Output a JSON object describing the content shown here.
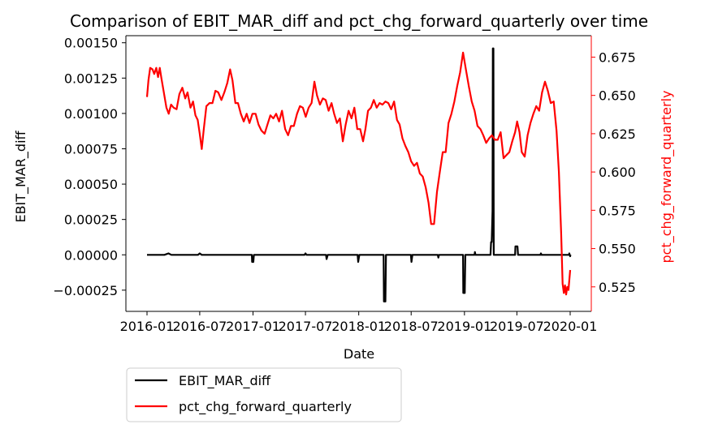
{
  "chart_data": {
    "type": "line",
    "title": "Comparison of EBIT_MAR_diff and pct_chg_forward_quarterly over time",
    "xlabel": "Date",
    "ylabel_left": "EBIT_MAR_diff",
    "ylabel_right": "pct_chg_forward_quarterly",
    "x_ticks": [
      "2016-01",
      "2016-07",
      "2017-01",
      "2017-07",
      "2018-01",
      "2018-07",
      "2019-01",
      "2019-07",
      "2020-01"
    ],
    "y_left_ticks": [
      "0.00150",
      "0.00125",
      "0.00100",
      "0.00075",
      "0.00050",
      "0.00025",
      "0.00000",
      "−0.00025"
    ],
    "y_right_ticks": [
      "0.675",
      "0.650",
      "0.625",
      "0.600",
      "0.575",
      "0.550",
      "0.525"
    ],
    "y_left_range": [
      -0.0004,
      0.00155
    ],
    "y_right_range": [
      0.509,
      0.689
    ],
    "grid": false,
    "legend_position": "below",
    "colors": {
      "left_series": "#000000",
      "right_series": "#ff0000"
    },
    "series": [
      {
        "name": "EBIT_MAR_diff",
        "axis": "left",
        "color": "#000000",
        "points": [
          [
            "2016-01",
            0.0
          ],
          [
            "2016-03",
            0.0
          ],
          [
            "2016-03-15",
            1e-05
          ],
          [
            "2016-03-25",
            0.0
          ],
          [
            "2016-06-25",
            0.0
          ],
          [
            "2016-07",
            1e-05
          ],
          [
            "2016-07-08",
            0.0
          ],
          [
            "2016-12-28",
            0.0
          ],
          [
            "2016-12-29",
            -5e-05
          ],
          [
            "2017-01-02",
            -5e-05
          ],
          [
            "2017-01-04",
            0.0
          ],
          [
            "2017-06-28",
            0.0
          ],
          [
            "2017-07",
            1e-05
          ],
          [
            "2017-07-05",
            0.0
          ],
          [
            "2017-09-10",
            0.0
          ],
          [
            "2017-09-12",
            -3e-05
          ],
          [
            "2017-09-16",
            0.0
          ],
          [
            "2017-12-28",
            0.0
          ],
          [
            "2017-12-30",
            -5e-05
          ],
          [
            "2018-01-03",
            0.0
          ],
          [
            "2018-03-28",
            0.0
          ],
          [
            "2018-03-29",
            -0.00033
          ],
          [
            "2018-04-03",
            -0.00033
          ],
          [
            "2018-04-05",
            0.0
          ],
          [
            "2018-06-30",
            0.0
          ],
          [
            "2018-07-02",
            -5e-05
          ],
          [
            "2018-07-05",
            0.0
          ],
          [
            "2018-10-01",
            0.0
          ],
          [
            "2018-10-03",
            -2e-05
          ],
          [
            "2018-10-05",
            0.0
          ],
          [
            "2018-12-27",
            0.0
          ],
          [
            "2018-12-28",
            -0.00027
          ],
          [
            "2019-01-02",
            -0.00027
          ],
          [
            "2019-01-04",
            0.0
          ],
          [
            "2019-02-05",
            0.0
          ],
          [
            "2019-02-06",
            2e-05
          ],
          [
            "2019-02-08",
            0.0
          ],
          [
            "2019-04-01",
            0.0
          ],
          [
            "2019-04-03",
            9e-05
          ],
          [
            "2019-04-05",
            9e-05
          ],
          [
            "2019-04-08",
            0.00031
          ],
          [
            "2019-04-09",
            0.00146
          ],
          [
            "2019-04-11",
            0.00146
          ],
          [
            "2019-04-12",
            0.0
          ],
          [
            "2019-06-25",
            0.0
          ],
          [
            "2019-06-26",
            6e-05
          ],
          [
            "2019-07-03",
            6e-05
          ],
          [
            "2019-07-05",
            0.0
          ],
          [
            "2019-09-20",
            0.0
          ],
          [
            "2019-09-22",
            1e-05
          ],
          [
            "2019-09-24",
            0.0
          ],
          [
            "2019-12-28",
            0.0
          ],
          [
            "2019-12-29",
            1e-05
          ],
          [
            "2020-01-01",
            -1e-05
          ],
          [
            "2020-01-02",
            0.0
          ]
        ]
      },
      {
        "name": "pct_chg_forward_quarterly",
        "axis": "right",
        "color": "#ff0000",
        "points": [
          [
            "2016-01",
            0.649
          ],
          [
            "2016-01-06",
            0.66
          ],
          [
            "2016-01-12",
            0.668
          ],
          [
            "2016-01-20",
            0.667
          ],
          [
            "2016-01-26",
            0.664
          ],
          [
            "2016-02-02",
            0.668
          ],
          [
            "2016-02-08",
            0.662
          ],
          [
            "2016-02-14",
            0.668
          ],
          [
            "2016-02-20",
            0.661
          ],
          [
            "2016-02-28",
            0.652
          ],
          [
            "2016-03-08",
            0.642
          ],
          [
            "2016-03-16",
            0.638
          ],
          [
            "2016-03-24",
            0.644
          ],
          [
            "2016-04-02",
            0.642
          ],
          [
            "2016-04-12",
            0.641
          ],
          [
            "2016-04-22",
            0.651
          ],
          [
            "2016-05-02",
            0.655
          ],
          [
            "2016-05-12",
            0.648
          ],
          [
            "2016-05-20",
            0.652
          ],
          [
            "2016-05-30",
            0.642
          ],
          [
            "2016-06-08",
            0.646
          ],
          [
            "2016-06-16",
            0.637
          ],
          [
            "2016-06-24",
            0.634
          ],
          [
            "2016-07-01",
            0.625
          ],
          [
            "2016-07-08",
            0.615
          ],
          [
            "2016-07-15",
            0.628
          ],
          [
            "2016-07-24",
            0.643
          ],
          [
            "2016-08-04",
            0.645
          ],
          [
            "2016-08-14",
            0.645
          ],
          [
            "2016-08-24",
            0.653
          ],
          [
            "2016-09-03",
            0.652
          ],
          [
            "2016-09-14",
            0.647
          ],
          [
            "2016-09-24",
            0.652
          ],
          [
            "2016-10-04",
            0.658
          ],
          [
            "2016-10-14",
            0.667
          ],
          [
            "2016-10-22",
            0.66
          ],
          [
            "2016-11-01",
            0.645
          ],
          [
            "2016-11-10",
            0.645
          ],
          [
            "2016-11-20",
            0.638
          ],
          [
            "2016-11-30",
            0.633
          ],
          [
            "2016-12-10",
            0.638
          ],
          [
            "2016-12-20",
            0.632
          ],
          [
            "2016-12-30",
            0.638
          ],
          [
            "2017-01-10",
            0.638
          ],
          [
            "2017-01-20",
            0.631
          ],
          [
            "2017-01-30",
            0.627
          ],
          [
            "2017-02-10",
            0.625
          ],
          [
            "2017-02-20",
            0.631
          ],
          [
            "2017-03-02",
            0.637
          ],
          [
            "2017-03-12",
            0.635
          ],
          [
            "2017-03-22",
            0.638
          ],
          [
            "2017-04-01",
            0.633
          ],
          [
            "2017-04-11",
            0.64
          ],
          [
            "2017-04-22",
            0.628
          ],
          [
            "2017-05-02",
            0.624
          ],
          [
            "2017-05-12",
            0.63
          ],
          [
            "2017-05-22",
            0.63
          ],
          [
            "2017-06-02",
            0.638
          ],
          [
            "2017-06-12",
            0.643
          ],
          [
            "2017-06-22",
            0.642
          ],
          [
            "2017-07-02",
            0.636
          ],
          [
            "2017-07-12",
            0.642
          ],
          [
            "2017-07-22",
            0.645
          ],
          [
            "2017-08-01",
            0.659
          ],
          [
            "2017-08-10",
            0.65
          ],
          [
            "2017-08-20",
            0.644
          ],
          [
            "2017-08-30",
            0.648
          ],
          [
            "2017-09-09",
            0.647
          ],
          [
            "2017-09-19",
            0.64
          ],
          [
            "2017-09-29",
            0.645
          ],
          [
            "2017-10-08",
            0.638
          ],
          [
            "2017-10-18",
            0.632
          ],
          [
            "2017-10-28",
            0.635
          ],
          [
            "2017-11-07",
            0.62
          ],
          [
            "2017-11-17",
            0.631
          ],
          [
            "2017-11-27",
            0.64
          ],
          [
            "2017-12-07",
            0.635
          ],
          [
            "2017-12-17",
            0.642
          ],
          [
            "2017-12-27",
            0.628
          ],
          [
            "2018-01-06",
            0.628
          ],
          [
            "2018-01-16",
            0.62
          ],
          [
            "2018-01-24",
            0.628
          ],
          [
            "2018-02-02",
            0.64
          ],
          [
            "2018-02-12",
            0.642
          ],
          [
            "2018-02-22",
            0.647
          ],
          [
            "2018-03-04",
            0.642
          ],
          [
            "2018-03-14",
            0.645
          ],
          [
            "2018-03-24",
            0.644
          ],
          [
            "2018-04-03",
            0.646
          ],
          [
            "2018-04-13",
            0.645
          ],
          [
            "2018-04-23",
            0.641
          ],
          [
            "2018-05-03",
            0.646
          ],
          [
            "2018-05-13",
            0.634
          ],
          [
            "2018-05-22",
            0.631
          ],
          [
            "2018-06-01",
            0.622
          ],
          [
            "2018-06-11",
            0.617
          ],
          [
            "2018-06-21",
            0.613
          ],
          [
            "2018-07-01",
            0.607
          ],
          [
            "2018-07-11",
            0.604
          ],
          [
            "2018-07-21",
            0.606
          ],
          [
            "2018-07-31",
            0.599
          ],
          [
            "2018-08-10",
            0.597
          ],
          [
            "2018-08-20",
            0.59
          ],
          [
            "2018-08-30",
            0.58
          ],
          [
            "2018-09-08",
            0.566
          ],
          [
            "2018-09-18",
            0.566
          ],
          [
            "2018-09-28",
            0.587
          ],
          [
            "2018-10-08",
            0.6
          ],
          [
            "2018-10-18",
            0.613
          ],
          [
            "2018-10-28",
            0.613
          ],
          [
            "2018-11-07",
            0.632
          ],
          [
            "2018-11-17",
            0.638
          ],
          [
            "2018-11-27",
            0.646
          ],
          [
            "2018-12-07",
            0.656
          ],
          [
            "2018-12-17",
            0.665
          ],
          [
            "2018-12-27",
            0.678
          ],
          [
            "2019-01-06",
            0.667
          ],
          [
            "2019-01-16",
            0.656
          ],
          [
            "2019-01-26",
            0.646
          ],
          [
            "2019-02-05",
            0.64
          ],
          [
            "2019-02-15",
            0.63
          ],
          [
            "2019-02-25",
            0.628
          ],
          [
            "2019-03-07",
            0.624
          ],
          [
            "2019-03-17",
            0.619
          ],
          [
            "2019-03-27",
            0.622
          ],
          [
            "2019-04-06",
            0.624
          ],
          [
            "2019-04-16",
            0.621
          ],
          [
            "2019-04-26",
            0.621
          ],
          [
            "2019-05-06",
            0.626
          ],
          [
            "2019-05-16",
            0.609
          ],
          [
            "2019-05-26",
            0.611
          ],
          [
            "2019-06-05",
            0.613
          ],
          [
            "2019-06-15",
            0.62
          ],
          [
            "2019-06-25",
            0.626
          ],
          [
            "2019-07-02",
            0.633
          ],
          [
            "2019-07-10",
            0.626
          ],
          [
            "2019-07-18",
            0.613
          ],
          [
            "2019-07-28",
            0.61
          ],
          [
            "2019-08-07",
            0.624
          ],
          [
            "2019-08-17",
            0.632
          ],
          [
            "2019-08-27",
            0.638
          ],
          [
            "2019-09-06",
            0.643
          ],
          [
            "2019-09-16",
            0.64
          ],
          [
            "2019-09-26",
            0.652
          ],
          [
            "2019-10-06",
            0.659
          ],
          [
            "2019-10-16",
            0.653
          ],
          [
            "2019-10-26",
            0.645
          ],
          [
            "2019-11-05",
            0.646
          ],
          [
            "2019-11-15",
            0.627
          ],
          [
            "2019-11-23",
            0.6
          ],
          [
            "2019-12-01",
            0.56
          ],
          [
            "2019-12-06",
            0.527
          ],
          [
            "2019-12-10",
            0.521
          ],
          [
            "2019-12-14",
            0.526
          ],
          [
            "2019-12-18",
            0.52
          ],
          [
            "2019-12-22",
            0.525
          ],
          [
            "2019-12-26",
            0.523
          ],
          [
            "2020-01",
            0.536
          ]
        ]
      }
    ]
  }
}
